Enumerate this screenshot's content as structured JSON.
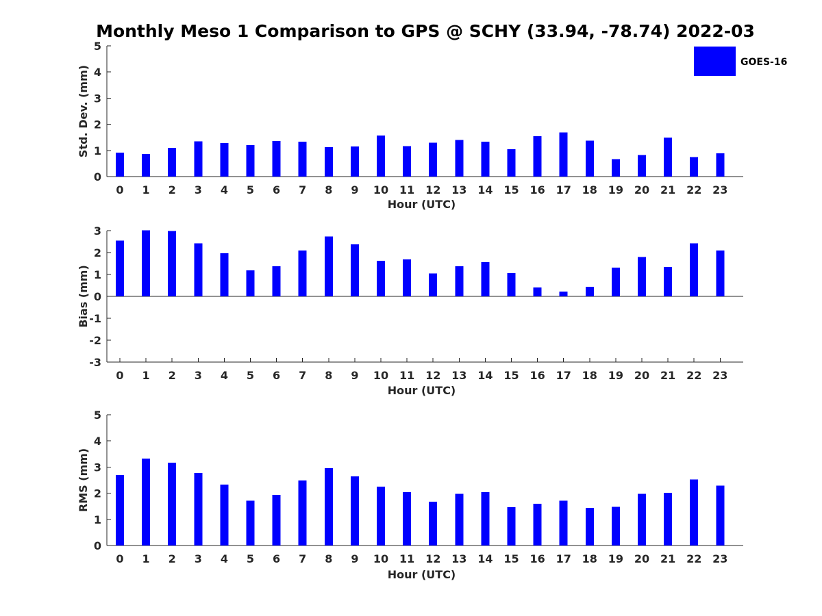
{
  "title": "Monthly Meso 1 Comparison to GPS @ SCHY (33.94, -78.74) 2022-03",
  "legend": {
    "label": "GOES-16",
    "color": "#0000ff"
  },
  "chart_data": [
    {
      "type": "bar",
      "name": "std-dev",
      "xlabel": "Hour (UTC)",
      "ylabel": "Std. Dev. (mm)",
      "ylim": [
        0,
        5
      ],
      "yticks": [
        "0",
        "1",
        "2",
        "3",
        "4",
        "5"
      ],
      "categories": [
        "0",
        "1",
        "2",
        "3",
        "4",
        "5",
        "6",
        "7",
        "8",
        "9",
        "10",
        "11",
        "12",
        "13",
        "14",
        "15",
        "16",
        "17",
        "18",
        "19",
        "20",
        "21",
        "22",
        "23"
      ],
      "series": [
        {
          "name": "GOES-16",
          "values": [
            0.92,
            0.86,
            1.1,
            1.35,
            1.28,
            1.2,
            1.36,
            1.33,
            1.12,
            1.15,
            1.57,
            1.17,
            1.3,
            1.4,
            1.33,
            1.05,
            1.54,
            1.69,
            1.38,
            0.67,
            0.83,
            1.49,
            0.75,
            0.89
          ]
        }
      ]
    },
    {
      "type": "bar",
      "name": "bias",
      "xlabel": "Hour (UTC)",
      "ylabel": "Bias (mm)",
      "ylim": [
        -3,
        3
      ],
      "yticks": [
        "-3",
        "-2",
        "-1",
        "0",
        "1",
        "2",
        "3"
      ],
      "categories": [
        "0",
        "1",
        "2",
        "3",
        "4",
        "5",
        "6",
        "7",
        "8",
        "9",
        "10",
        "11",
        "12",
        "13",
        "14",
        "15",
        "16",
        "17",
        "18",
        "19",
        "20",
        "21",
        "22",
        "23"
      ],
      "series": [
        {
          "name": "GOES-16",
          "values": [
            2.55,
            3.02,
            2.98,
            2.42,
            1.97,
            1.19,
            1.38,
            2.1,
            2.73,
            2.38,
            1.63,
            1.69,
            1.04,
            1.38,
            1.57,
            1.06,
            0.4,
            0.22,
            0.44,
            1.32,
            1.79,
            1.35,
            2.42,
            2.1
          ]
        }
      ]
    },
    {
      "type": "bar",
      "name": "rms",
      "xlabel": "Hour (UTC)",
      "ylabel": "RMS (mm)",
      "ylim": [
        0,
        5
      ],
      "yticks": [
        "0",
        "1",
        "2",
        "3",
        "4",
        "5"
      ],
      "categories": [
        "0",
        "1",
        "2",
        "3",
        "4",
        "5",
        "6",
        "7",
        "8",
        "9",
        "10",
        "11",
        "12",
        "13",
        "14",
        "15",
        "16",
        "17",
        "18",
        "19",
        "20",
        "21",
        "22",
        "23"
      ],
      "series": [
        {
          "name": "GOES-16",
          "values": [
            2.7,
            3.33,
            3.17,
            2.77,
            2.33,
            1.71,
            1.94,
            2.49,
            2.96,
            2.65,
            2.25,
            2.04,
            1.68,
            1.97,
            2.04,
            1.47,
            1.6,
            1.71,
            1.44,
            1.48,
            1.97,
            2.02,
            2.52,
            2.29
          ]
        }
      ]
    }
  ]
}
